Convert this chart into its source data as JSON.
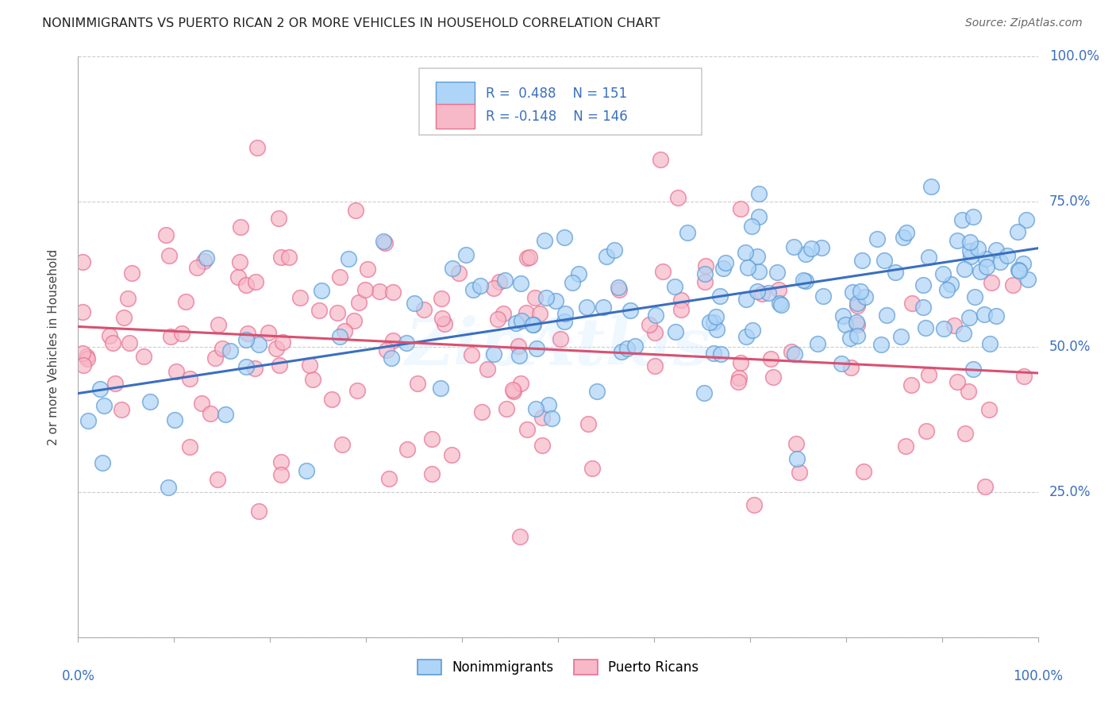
{
  "title": "NONIMMIGRANTS VS PUERTO RICAN 2 OR MORE VEHICLES IN HOUSEHOLD CORRELATION CHART",
  "source": "Source: ZipAtlas.com",
  "ylabel": "2 or more Vehicles in Household",
  "nonimmigrants": {
    "R": 0.488,
    "N": 151,
    "face_color": "#AED4F7",
    "edge_color": "#5B9BD5",
    "line_color": "#3A6FBF",
    "label": "Nonimmigrants"
  },
  "puerto_ricans": {
    "R": -0.148,
    "N": 146,
    "face_color": "#F7B8C8",
    "edge_color": "#E87090",
    "line_color": "#D95070",
    "label": "Puerto Ricans"
  },
  "xlim": [
    0.0,
    1.0
  ],
  "ylim": [
    0.0,
    1.0
  ],
  "yticks": [
    0.0,
    0.25,
    0.5,
    0.75,
    1.0
  ],
  "ytick_labels": [
    "",
    "25.0%",
    "50.0%",
    "75.0%",
    "100.0%"
  ],
  "background_color": "#FFFFFF",
  "grid_color": "#CCCCCC",
  "watermark": "ZipAtlas",
  "legend_color": "#3A6FBF",
  "ni_line_start_y": 0.42,
  "ni_line_end_y": 0.67,
  "pr_line_start_y": 0.535,
  "pr_line_end_y": 0.455
}
